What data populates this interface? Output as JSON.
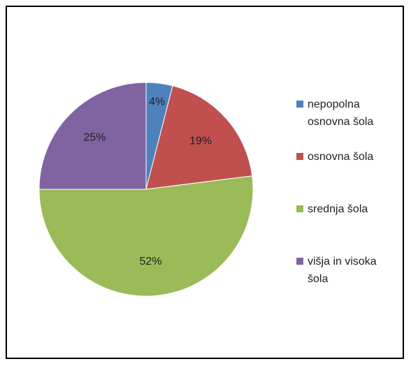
{
  "chart_data": {
    "type": "pie",
    "categories": [
      "nepopolna osnovna šola",
      "osnovna šola",
      "srednja šola",
      "višja in visoka šola"
    ],
    "values": [
      4,
      19,
      52,
      25
    ],
    "value_labels": [
      "4%",
      "19%",
      "52%",
      "25%"
    ],
    "colors": [
      "#4f81bd",
      "#c0504d",
      "#9bbb59",
      "#8064a2"
    ],
    "legend": "right"
  }
}
